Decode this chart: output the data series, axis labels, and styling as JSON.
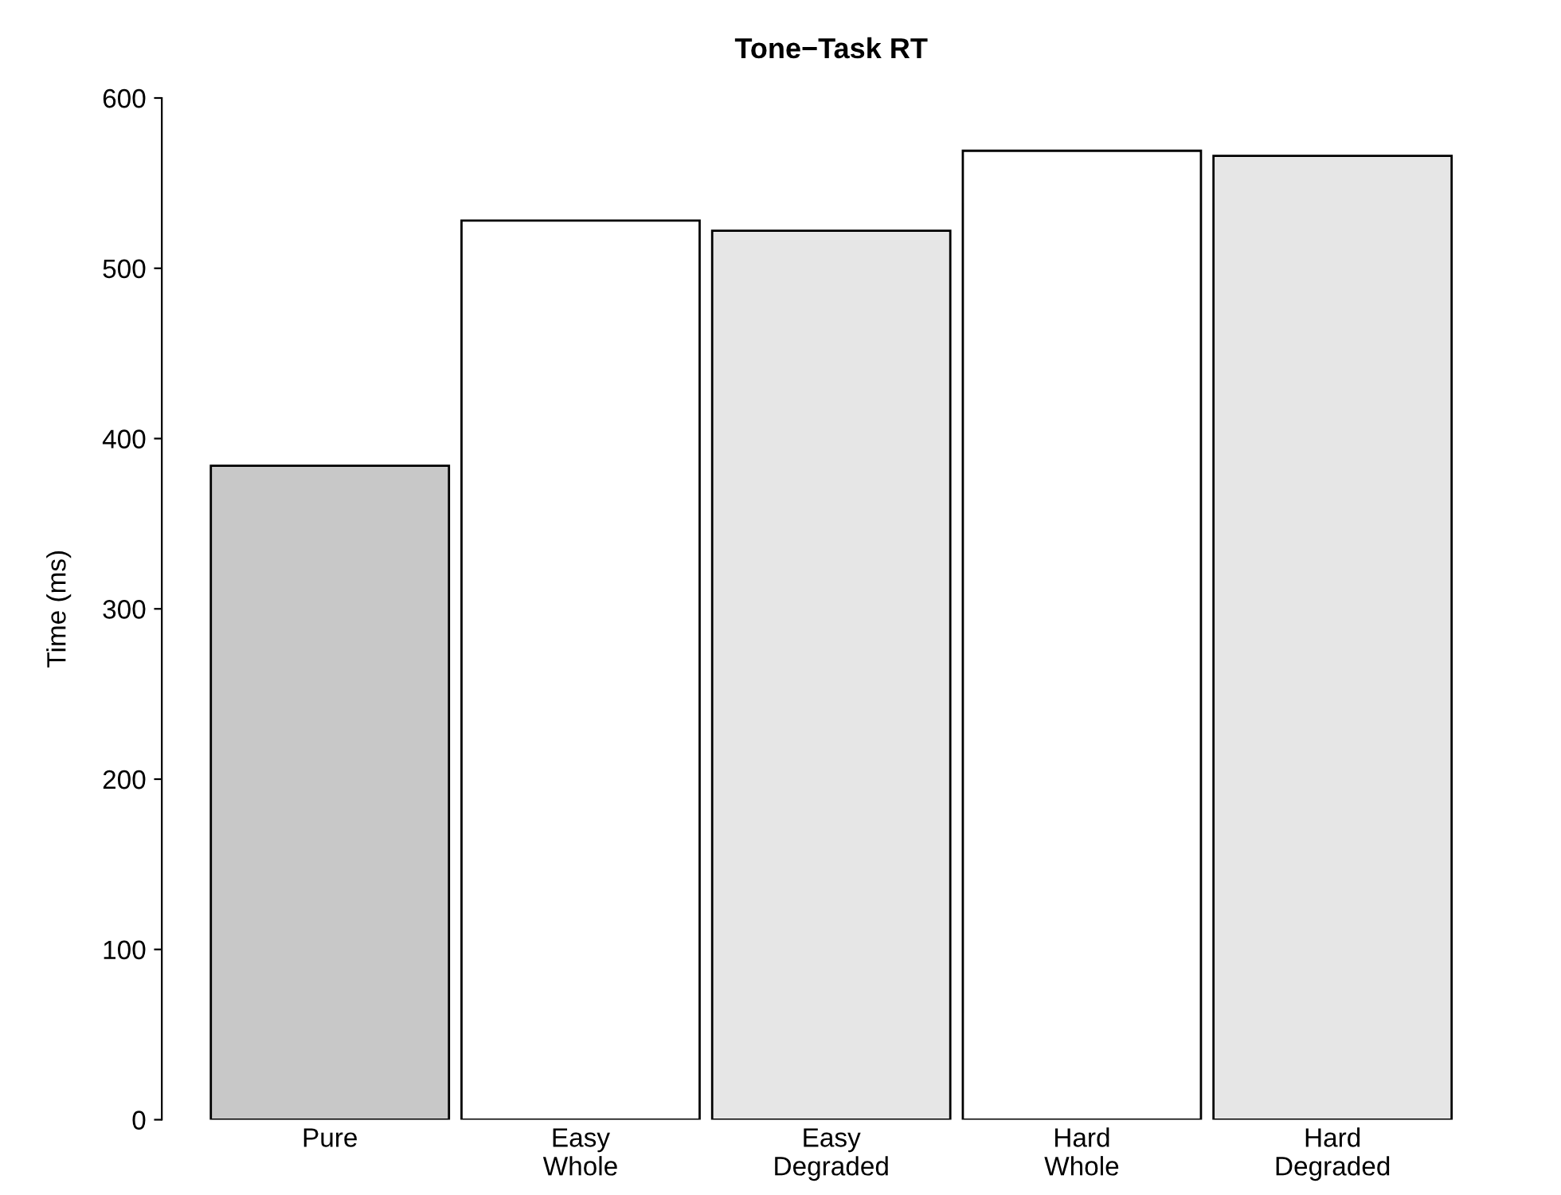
{
  "chart_data": {
    "type": "bar",
    "title": "Tone−Task RT",
    "ylabel": "Time (ms)",
    "categories": [
      "Pure",
      "Easy\nWhole",
      "Easy\nDegraded",
      "Hard\nWhole",
      "Hard\nDegraded"
    ],
    "values": [
      384,
      528,
      522,
      569,
      566
    ],
    "colors": [
      "#c8c8c8",
      "#ffffff",
      "#e6e6e6",
      "#ffffff",
      "#e6e6e6"
    ],
    "ylim": [
      0,
      600
    ],
    "yticks": [
      0,
      100,
      200,
      300,
      400,
      500,
      600
    ],
    "grid": false,
    "legend": false
  }
}
